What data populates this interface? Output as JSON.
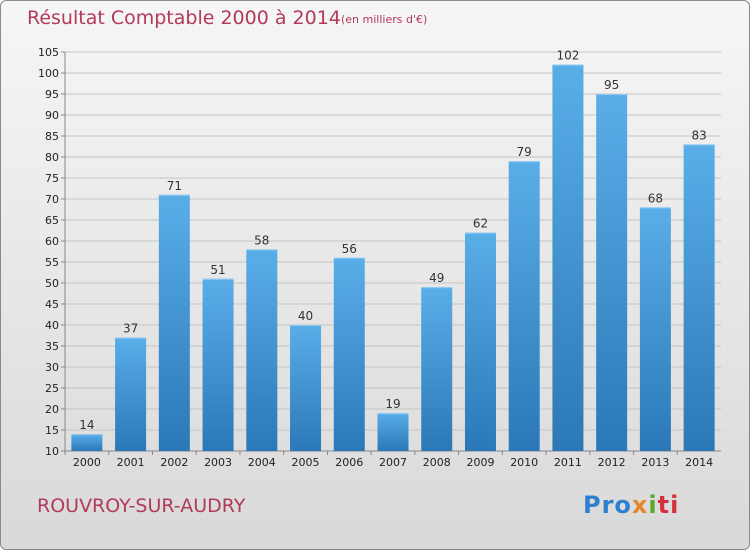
{
  "header": {
    "title": "Résultat Comptable 2000 à 2014",
    "subtitle": "(en milliers d'€)"
  },
  "footer": {
    "commune": "ROUVROY-SUR-AUDRY",
    "logo_text": "Proxiti"
  },
  "colors": {
    "bar_top": "#5aaee8",
    "bar_bottom": "#2a78b8",
    "title": "#b23a5a"
  },
  "chart_data": {
    "type": "bar",
    "title": "Résultat Comptable 2000 à 2014",
    "subtitle": "(en milliers d'€)",
    "xlabel": "",
    "ylabel": "",
    "categories": [
      "2000",
      "2001",
      "2002",
      "2003",
      "2004",
      "2005",
      "2006",
      "2007",
      "2008",
      "2009",
      "2010",
      "2011",
      "2012",
      "2013",
      "2014"
    ],
    "values": [
      14,
      37,
      71,
      51,
      58,
      40,
      56,
      19,
      49,
      62,
      79,
      102,
      95,
      68,
      83
    ],
    "ylim": [
      10,
      105
    ],
    "yticks": [
      10,
      15,
      20,
      25,
      30,
      35,
      40,
      45,
      50,
      55,
      60,
      65,
      70,
      75,
      80,
      85,
      90,
      95,
      100,
      105
    ],
    "grid": true,
    "legend": "none"
  }
}
